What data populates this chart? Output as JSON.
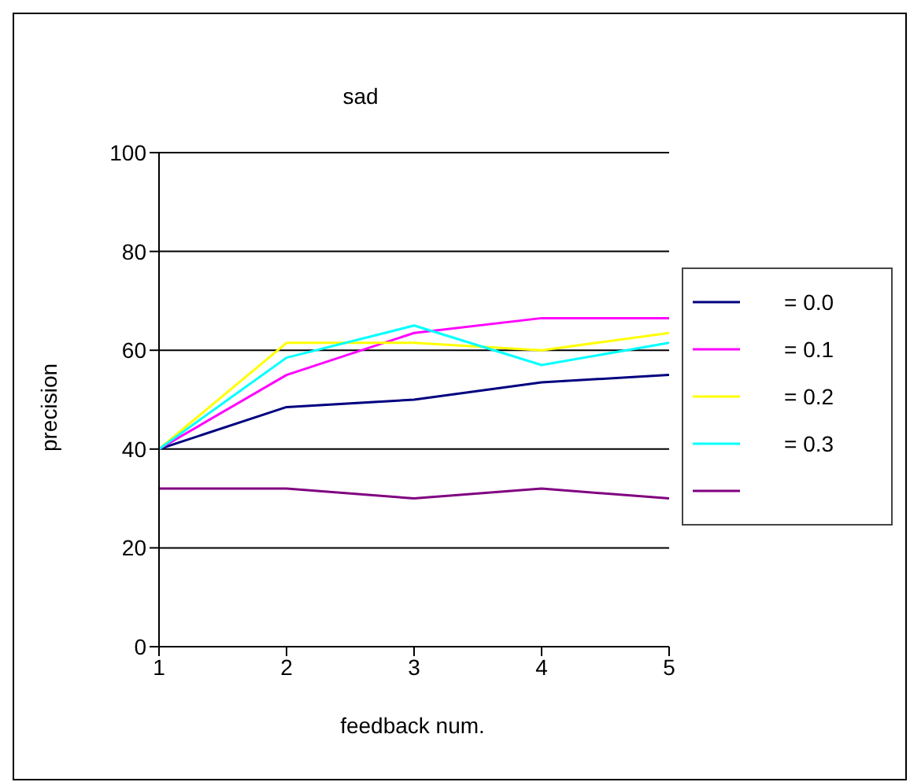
{
  "chart_data": {
    "type": "line",
    "title": "sad",
    "xlabel": "feedback num.",
    "ylabel": "precision",
    "x": [
      1,
      2,
      3,
      4,
      5
    ],
    "xlim": [
      1,
      5
    ],
    "xticks": [
      1,
      2,
      3,
      4,
      5
    ],
    "ylim": [
      0,
      100
    ],
    "yticks": [
      0,
      20,
      40,
      60,
      80,
      100
    ],
    "grid": "y",
    "legend": "right",
    "marker": "none",
    "line_style": "solid",
    "series": [
      {
        "name": "= 0.0",
        "color": "#000080",
        "values": [
          40,
          48.5,
          50,
          53.5,
          55
        ]
      },
      {
        "name": "= 0.1",
        "color": "#ff00ff",
        "values": [
          40,
          55,
          63.5,
          66.5,
          66.5
        ]
      },
      {
        "name": "= 0.2",
        "color": "#ffff00",
        "values": [
          40,
          61.5,
          61.5,
          60,
          63.5
        ]
      },
      {
        "name": "= 0.3",
        "color": "#00ffff",
        "values": [
          40,
          58.5,
          65,
          57,
          61.5
        ]
      },
      {
        "color": "#800080",
        "values": [
          32,
          32,
          30,
          32,
          30
        ]
      }
    ]
  }
}
